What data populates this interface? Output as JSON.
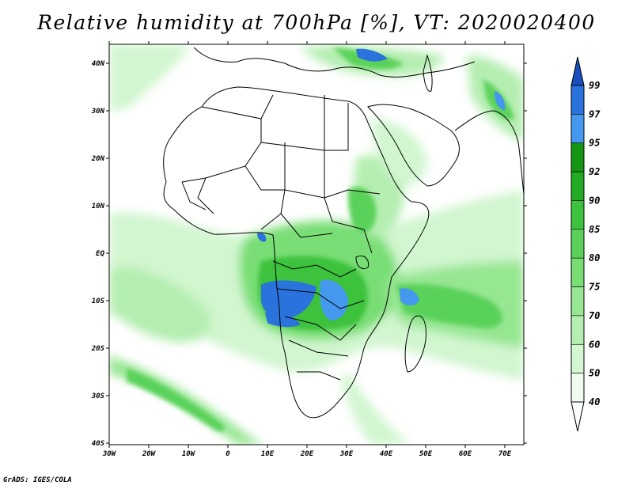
{
  "title": "Relative humidity at 700hPa [%], VT: 2020020400",
  "footer": "GrADS: IGES/COLA",
  "map": {
    "region": "Africa and adjacent oceans",
    "lon_range": [
      -30,
      75
    ],
    "lat_range": [
      -40,
      45
    ],
    "lat_labels": [
      "40N",
      "30N",
      "20N",
      "10N",
      "EQ",
      "10S",
      "20S",
      "30S",
      "40S"
    ],
    "lon_labels": [
      "30W",
      "20W",
      "10W",
      "0",
      "10E",
      "20E",
      "30E",
      "40E",
      "50E",
      "60E",
      "70E"
    ],
    "field_description": "700hPa relative humidity shaded by colour levels; most humid zones over Central Africa (Congo, Angola, Zambia) and the Southwest Indian Ocean; dry over the Sahara and Southern Atlantic"
  },
  "colorbar": {
    "labels": [
      "40",
      "50",
      "60",
      "70",
      "75",
      "80",
      "85",
      "90",
      "92",
      "95",
      "97",
      "99"
    ],
    "colors": [
      "#f0fcf0",
      "#d2f6d0",
      "#b4eeb0",
      "#96e692",
      "#78de74",
      "#5ad25a",
      "#3cc23c",
      "#22aa22",
      "#149614",
      "#4498ee",
      "#2a72dc",
      "#1a4ebc"
    ]
  }
}
